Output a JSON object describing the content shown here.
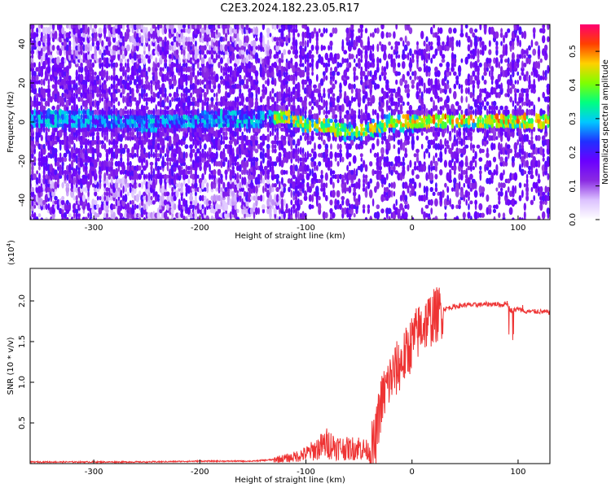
{
  "title": "C2E3.2024.182.23.05.R17",
  "chart_data": [
    {
      "type": "heatmap",
      "xlabel": "Height of straight line (km)",
      "ylabel": "Frequency (Hz)",
      "xlim": [
        -360,
        130
      ],
      "ylim": [
        -50,
        50
      ],
      "xticks": [
        -300,
        -200,
        -100,
        0,
        100
      ],
      "yticks": [
        -40,
        -20,
        0,
        20,
        40
      ],
      "grid": false,
      "colorbar": {
        "label": "Normalized spectral amplitude",
        "range": [
          0.0,
          0.58
        ],
        "ticks": [
          0.0,
          0.1,
          0.2,
          0.3,
          0.4,
          0.5
        ],
        "colormap": [
          "#ffffff",
          "#dcc2ff",
          "#8a2be2",
          "#6a00ff",
          "#2030ff",
          "#00c8ff",
          "#00ff80",
          "#80ff00",
          "#ffd000",
          "#ff4000",
          "#ff0070"
        ]
      },
      "ridge": {
        "description_units": "Hz",
        "points": [
          [
            -360,
            2
          ],
          [
            -300,
            1
          ],
          [
            -250,
            0
          ],
          [
            -200,
            1
          ],
          [
            -150,
            2
          ],
          [
            -120,
            3
          ],
          [
            -100,
            -1
          ],
          [
            -80,
            -2
          ],
          [
            -60,
            -5
          ],
          [
            -40,
            -4
          ],
          [
            -20,
            0
          ],
          [
            0,
            0
          ],
          [
            20,
            1
          ],
          [
            50,
            1
          ],
          [
            80,
            1
          ],
          [
            100,
            1
          ],
          [
            130,
            1
          ]
        ]
      }
    },
    {
      "type": "line",
      "xlabel": "Height of straight line (km)",
      "ylabel": "SNR (10 * v/v)",
      "yscale_label": "(x10",
      "yscale_exp": "4",
      "yscale_close": ")",
      "xlim": [
        -360,
        130
      ],
      "ylim": [
        0,
        2.4
      ],
      "xticks": [
        -300,
        -200,
        -100,
        0,
        100
      ],
      "yticks": [
        0.5,
        1.0,
        1.5,
        2.0
      ],
      "ytick_labels": [
        "0.5",
        "1.0",
        "1.5",
        "2.0"
      ],
      "grid": false,
      "series": [
        {
          "color": "#ee3333",
          "x": [
            -360,
            -300,
            -250,
            -200,
            -150,
            -130,
            -115,
            -100,
            -90,
            -80,
            -70,
            -60,
            -50,
            -40,
            -35,
            -30,
            -25,
            -20,
            -15,
            -10,
            -5,
            0,
            5,
            10,
            15,
            20,
            25,
            30,
            40,
            50,
            60,
            70,
            80,
            85,
            90,
            92,
            95,
            100,
            105,
            110,
            120,
            130
          ],
          "y": [
            0.02,
            0.02,
            0.02,
            0.03,
            0.03,
            0.05,
            0.07,
            0.12,
            0.18,
            0.25,
            0.2,
            0.18,
            0.2,
            0.15,
            0.22,
            0.7,
            0.9,
            1.05,
            1.15,
            1.25,
            1.35,
            1.5,
            1.6,
            1.7,
            1.75,
            1.8,
            1.85,
            1.9,
            1.93,
            1.95,
            1.95,
            1.96,
            1.96,
            1.95,
            1.98,
            1.9,
            1.88,
            1.9,
            1.88,
            1.87,
            1.87,
            1.86
          ]
        }
      ]
    }
  ]
}
